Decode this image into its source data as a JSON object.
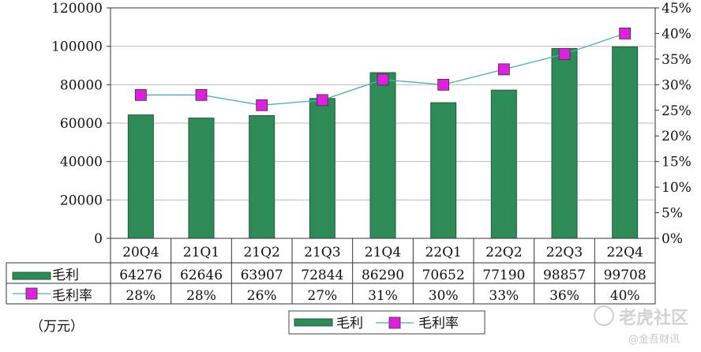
{
  "chart_data": {
    "type": "bar",
    "categories": [
      "20Q4",
      "21Q1",
      "21Q2",
      "21Q3",
      "21Q4",
      "22Q1",
      "22Q2",
      "22Q3",
      "22Q4"
    ],
    "series": [
      {
        "name": "毛利",
        "type": "bar",
        "axis": "left",
        "values": [
          64276,
          62646,
          63907,
          72844,
          86290,
          70652,
          77190,
          98857,
          99708
        ],
        "table_labels": [
          "64276",
          "62646",
          "63907",
          "72844",
          "86290",
          "70652",
          "77190",
          "98857",
          "99708"
        ]
      },
      {
        "name": "毛利率",
        "type": "line",
        "axis": "right",
        "values": [
          28,
          28,
          26,
          27,
          31,
          30,
          33,
          36,
          40
        ],
        "table_labels": [
          "28%",
          "28%",
          "26%",
          "27%",
          "31%",
          "30%",
          "33%",
          "36%",
          "40%"
        ]
      }
    ],
    "ylim_left": [
      0,
      120000
    ],
    "yticks_left": [
      "0",
      "20000",
      "40000",
      "60000",
      "80000",
      "100000",
      "120000"
    ],
    "ylim_right": [
      0,
      45
    ],
    "yticks_right": [
      "0%",
      "5%",
      "10%",
      "15%",
      "20%",
      "25%",
      "30%",
      "35%",
      "40%",
      "45%"
    ],
    "unit_label": "（万元）",
    "grid": "horizontal",
    "legend_position": "bottom",
    "colors": {
      "bar": "#2e8b57",
      "bar_edge": "#1f5e3a",
      "line": "#48b0b8",
      "marker": "#e020e0",
      "grid": "#bdbdbd"
    }
  },
  "watermark": {
    "brand": "老虎社区",
    "sub": "@金吾财讯"
  }
}
